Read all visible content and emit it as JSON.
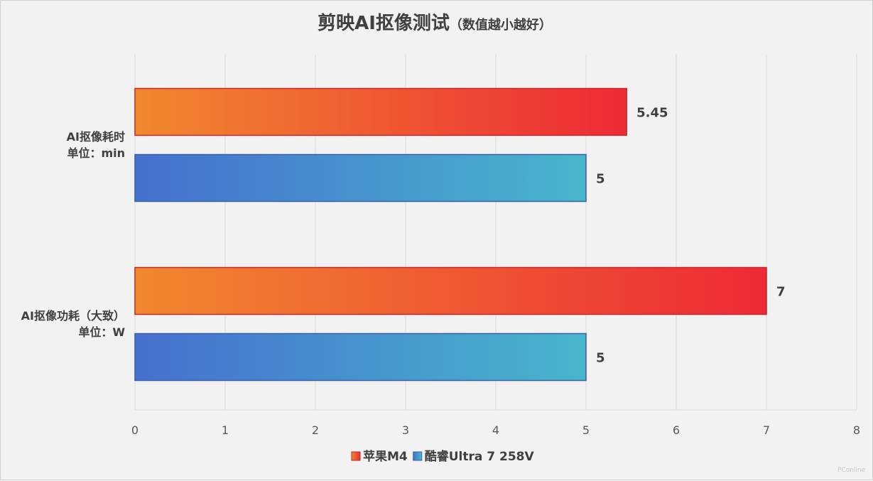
{
  "chart_data": {
    "type": "bar",
    "orientation": "horizontal",
    "title": "剪映AI抠像测试",
    "subtitle": "（数值越小越好）",
    "categories": [
      [
        "AI抠像耗时",
        "单位：min"
      ],
      [
        "AI抠像功耗（大致）",
        "单位：W"
      ]
    ],
    "series": [
      {
        "name": "苹果M4",
        "values": [
          5.45,
          7
        ],
        "color_start": "#f0882e",
        "color_end": "#ee2a36"
      },
      {
        "name": "酷睿Ultra 7 258V",
        "values": [
          5,
          5
        ],
        "color_start": "#4670cf",
        "color_end": "#47b6cc"
      }
    ],
    "data_labels": [
      [
        "5.45",
        "7"
      ],
      [
        "5",
        "5"
      ]
    ],
    "xlim": [
      0,
      8
    ],
    "xticks": [
      0,
      1,
      2,
      3,
      4,
      5,
      6,
      7,
      8
    ],
    "grid": true,
    "legend": "bottom"
  },
  "watermark": "PConline"
}
